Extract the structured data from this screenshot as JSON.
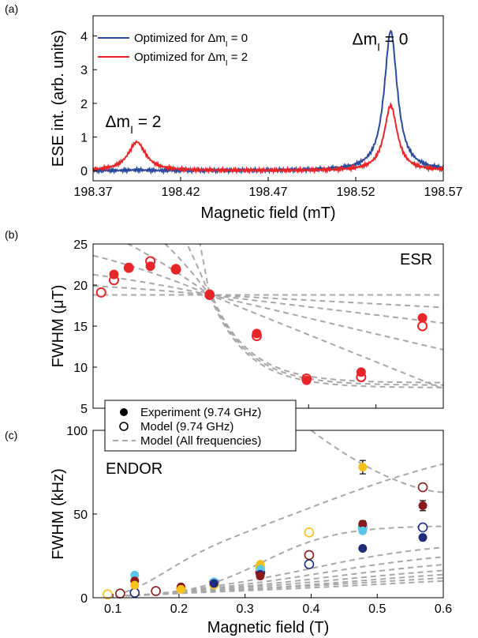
{
  "chart_data": [
    {
      "type": "line",
      "panel_label": "(a)",
      "xlabel": "Magnetic field (mT)",
      "ylabel": "ESE int. (arb. units)",
      "xlim": [
        198.37,
        198.57
      ],
      "ylim": [
        -0.3,
        4.6
      ],
      "xticks": [
        "198.37",
        "198.42",
        "198.47",
        "198.52",
        "198.57"
      ],
      "xtick_values": [
        198.37,
        198.42,
        198.47,
        198.52,
        198.57
      ],
      "yticks": [
        "0",
        "1",
        "2",
        "3",
        "4"
      ],
      "ytick_values": [
        0,
        1,
        2,
        3,
        4
      ],
      "legend_position": "top-left",
      "series": [
        {
          "name": "Optimized for Δm_I = 0",
          "color": "#2a4a9c",
          "peaks": [
            {
              "x0": 198.54,
              "amp": 4.15,
              "width": 0.0045
            },
            {
              "x0": 198.395,
              "amp": 0.02,
              "width": 0.006
            }
          ]
        },
        {
          "name": "Optimized for Δm_I = 2",
          "color": "#e8262a",
          "peaks": [
            {
              "x0": 198.54,
              "amp": 1.93,
              "width": 0.0045
            },
            {
              "x0": 198.395,
              "amp": 0.85,
              "width": 0.006
            }
          ]
        }
      ],
      "annotations": [
        {
          "text": "Δm",
          "sub": "I",
          "tail": " = 0",
          "color": "#2a4a9c",
          "x": 198.518,
          "y": 3.75
        },
        {
          "text": "Δm",
          "sub": "I",
          "tail": " = 2",
          "color": "#e8262a",
          "x": 198.377,
          "y": 1.3
        }
      ],
      "legend_labels": {
        "a_pre": "Optimized for Δm",
        "a_sub": "I",
        "a_post": " = 0",
        "b_pre": "Optimized for Δm",
        "b_sub": "I",
        "b_post": " = 2"
      }
    },
    {
      "type": "scatter",
      "panel_label": "(b)",
      "xlabel": "",
      "ylabel": "FWHM (μT)",
      "annotation": "ESR",
      "xlim": [
        0.08,
        0.6
      ],
      "ylim": [
        5,
        25
      ],
      "yticks": [
        "5",
        "10",
        "15",
        "20",
        "25"
      ],
      "ytick_values": [
        5,
        10,
        15,
        20,
        25
      ],
      "color": "#e8262a",
      "experiment": {
        "x": [
          0.111,
          0.133,
          0.165,
          0.203,
          0.253,
          0.323,
          0.397,
          0.478,
          0.569
        ],
        "y": [
          21.3,
          22.1,
          22.3,
          22.0,
          18.9,
          14.1,
          8.4,
          9.4,
          16.0
        ]
      },
      "model": {
        "x": [
          0.092,
          0.111,
          0.133,
          0.165,
          0.203,
          0.253,
          0.323,
          0.397,
          0.478,
          0.569
        ],
        "y": [
          19.1,
          20.6,
          22.1,
          22.9,
          21.9,
          18.8,
          13.8,
          8.6,
          8.8,
          15.0
        ]
      },
      "model_curves_center": [
        0.253,
        18.8
      ],
      "model_curves_slopes": [
        -450,
        -200,
        -110,
        -60,
        -35,
        -18,
        -8,
        0
      ]
    },
    {
      "type": "scatter",
      "panel_label": "(c)",
      "xlabel": "Magnetic field (T)",
      "ylabel": "FWHM (kHz)",
      "annotation": "ENDOR",
      "xlim": [
        0.07,
        0.6
      ],
      "ylim": [
        0,
        100
      ],
      "xticks": [
        "0.1",
        "0.2",
        "0.3",
        "0.4",
        "0.5",
        "0.6"
      ],
      "xtick_values": [
        0.1,
        0.2,
        0.3,
        0.4,
        0.5,
        0.6
      ],
      "yticks": [
        "0",
        "50",
        "100"
      ],
      "ytick_values": [
        0,
        50,
        100
      ],
      "legend": [
        "Experiment (9.74 GHz)",
        "Model (9.74 GHz)",
        "Model (All frequencies)"
      ],
      "experiment": [
        {
          "x": 0.133,
          "y": 13.5,
          "color": "#5cc6e8"
        },
        {
          "x": 0.133,
          "y": 10.0,
          "color": "#8a1a1a"
        },
        {
          "x": 0.133,
          "y": 7.5,
          "color": "#f7c11c"
        },
        {
          "x": 0.203,
          "y": 6.5,
          "color": "#8a1a1a"
        },
        {
          "x": 0.203,
          "y": 5.0,
          "color": "#f7c11c"
        },
        {
          "x": 0.253,
          "y": 9.5,
          "color": "#5cc6e8"
        },
        {
          "x": 0.253,
          "y": 8.5,
          "color": "#1e2d7a"
        },
        {
          "x": 0.323,
          "y": 20.0,
          "color": "#f7c11c"
        },
        {
          "x": 0.323,
          "y": 17.0,
          "color": "#5cc6e8"
        },
        {
          "x": 0.323,
          "y": 14.0,
          "color": "#1e2d7a"
        },
        {
          "x": 0.323,
          "y": 13.0,
          "color": "#8a1a1a"
        },
        {
          "x": 0.478,
          "y": 78.0,
          "color": "#f7c11c",
          "err": 4
        },
        {
          "x": 0.478,
          "y": 44.0,
          "color": "#8a1a1a",
          "err": 2
        },
        {
          "x": 0.478,
          "y": 40.0,
          "color": "#5cc6e8"
        },
        {
          "x": 0.478,
          "y": 29.5,
          "color": "#1e2d7a"
        },
        {
          "x": 0.569,
          "y": 55.0,
          "color": "#8a1a1a",
          "err": 3
        },
        {
          "x": 0.569,
          "y": 36.0,
          "color": "#1e2d7a"
        }
      ],
      "model": [
        {
          "x": 0.092,
          "y": 2.0,
          "color": "#f7c11c"
        },
        {
          "x": 0.111,
          "y": 2.5,
          "color": "#8a1a1a"
        },
        {
          "x": 0.133,
          "y": 3.0,
          "color": "#1e2d7a"
        },
        {
          "x": 0.165,
          "y": 4.0,
          "color": "#8a1a1a"
        },
        {
          "x": 0.203,
          "y": 5.5,
          "color": "#f7c11c"
        },
        {
          "x": 0.253,
          "y": 9.0,
          "color": "#1e2d7a"
        },
        {
          "x": 0.253,
          "y": 8.0,
          "color": "#f7c11c"
        },
        {
          "x": 0.323,
          "y": 18.0,
          "color": "#f7c11c"
        },
        {
          "x": 0.323,
          "y": 15.0,
          "color": "#8a1a1a"
        },
        {
          "x": 0.397,
          "y": 39.0,
          "color": "#f7c11c"
        },
        {
          "x": 0.397,
          "y": 25.5,
          "color": "#8a1a1a"
        },
        {
          "x": 0.397,
          "y": 20.0,
          "color": "#1e2d7a"
        },
        {
          "x": 0.478,
          "y": 42.0,
          "color": "#5cc6e8"
        },
        {
          "x": 0.569,
          "y": 66.0,
          "color": "#8a1a1a"
        },
        {
          "x": 0.569,
          "y": 42.0,
          "color": "#1e2d7a"
        }
      ],
      "model_curves": [
        {
          "a": 100,
          "s": 0.38,
          "k": 6
        },
        {
          "a": 42,
          "s": 0.33,
          "k": 18
        },
        {
          "a": 33,
          "s": 0.4,
          "k": 10
        },
        {
          "a": 28,
          "s": 0.42,
          "k": 9
        },
        {
          "a": 24,
          "s": 0.44,
          "k": 8
        },
        {
          "a": 21,
          "s": 0.46,
          "k": 7
        },
        {
          "a": 18,
          "s": 0.47,
          "k": 7
        },
        {
          "a": 16,
          "s": 0.48,
          "k": 6
        },
        {
          "a": 14,
          "s": 0.5,
          "k": 6
        }
      ],
      "top_curve": {
        "x0": 0.4,
        "y0": 100,
        "x1": 0.6,
        "y1": 63
      }
    }
  ]
}
